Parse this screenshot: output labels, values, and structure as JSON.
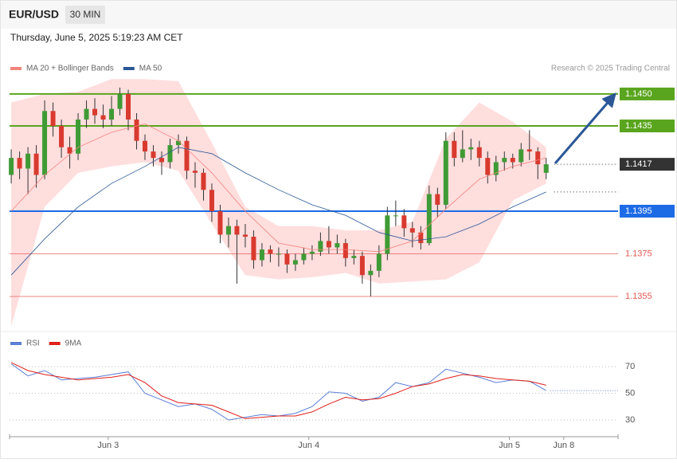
{
  "header": {
    "symbol": "EUR/USD",
    "interval": "30 MIN",
    "timestamp": "Thursday, June 5, 2025 5:19:23 AM CET",
    "credit": "Research © 2025 Trading Central"
  },
  "chart_data": [
    {
      "type": "candlestick",
      "legend": [
        {
          "label": "MA 20 + Bollinger Bands",
          "color": "#f4837d"
        },
        {
          "label": "MA 50",
          "color": "#2b5797"
        }
      ],
      "up_color": "#3f9b35",
      "down_color": "#d93a2f",
      "band_color": "#ffdede",
      "xlim": [
        -0.2,
        72.6
      ],
      "xticks": [
        {
          "value": 11.6,
          "label": "Jun 3"
        },
        {
          "value": 35.6,
          "label": "Jun 4"
        },
        {
          "value": 59.6,
          "label": "Jun 5"
        },
        {
          "value": 66.1,
          "label": "Jun 8"
        }
      ],
      "ylim": [
        1.13389,
        1.14567
      ],
      "levels": [
        {
          "value": 1.145,
          "label": "1.1450",
          "color": "#5aa51e",
          "line": "solid",
          "tag": true
        },
        {
          "value": 1.1435,
          "label": "1.1435",
          "color": "#5aa51e",
          "line": "solid",
          "tag": true
        },
        {
          "value": 1.1417,
          "label": "1.1417",
          "color": "#333333",
          "line": "dotted",
          "tag": true
        },
        {
          "value": 1.1395,
          "label": "1.1395",
          "color": "#1e6be6",
          "line": "solid",
          "tag": true
        },
        {
          "value": 1.1375,
          "label": "1.1375",
          "color": "#e35a52",
          "line": "solid",
          "tag": false
        },
        {
          "value": 1.1355,
          "label": "1.1355",
          "color": "#e35a52",
          "line": "solid",
          "tag": false
        }
      ],
      "candles": [
        [
          1.1412,
          1.1424,
          1.1408,
          1.142
        ],
        [
          1.142,
          1.1423,
          1.141,
          1.1415
        ],
        [
          1.1415,
          1.1425,
          1.1403,
          1.1422
        ],
        [
          1.1422,
          1.1426,
          1.1406,
          1.1412
        ],
        [
          1.1412,
          1.1447,
          1.141,
          1.1442
        ],
        [
          1.1442,
          1.1446,
          1.143,
          1.1435
        ],
        [
          1.1435,
          1.1438,
          1.142,
          1.1425
        ],
        [
          1.1425,
          1.143,
          1.1415,
          1.1422
        ],
        [
          1.1422,
          1.1441,
          1.1419,
          1.1438
        ],
        [
          1.1438,
          1.1447,
          1.1434,
          1.1443
        ],
        [
          1.1443,
          1.1448,
          1.1436,
          1.144
        ],
        [
          1.144,
          1.1445,
          1.1434,
          1.1438
        ],
        [
          1.1438,
          1.1449,
          1.1435,
          1.1443
        ],
        [
          1.1443,
          1.1453,
          1.144,
          1.145
        ],
        [
          1.145,
          1.1452,
          1.1433,
          1.1438
        ],
        [
          1.1438,
          1.1441,
          1.1424,
          1.1428
        ],
        [
          1.1428,
          1.1431,
          1.1419,
          1.1423
        ],
        [
          1.1423,
          1.1426,
          1.1416,
          1.142
        ],
        [
          1.142,
          1.1423,
          1.1412,
          1.1418
        ],
        [
          1.1418,
          1.1429,
          1.1415,
          1.1426
        ],
        [
          1.1426,
          1.1431,
          1.1422,
          1.1428
        ],
        [
          1.1428,
          1.143,
          1.141,
          1.1414
        ],
        [
          1.1414,
          1.1418,
          1.1406,
          1.1413
        ],
        [
          1.1413,
          1.1415,
          1.14,
          1.1405
        ],
        [
          1.1405,
          1.1408,
          1.139,
          1.1395
        ],
        [
          1.1395,
          1.1398,
          1.138,
          1.1384
        ],
        [
          1.1384,
          1.1392,
          1.1378,
          1.1388
        ],
        [
          1.1388,
          1.1391,
          1.1361,
          1.1384
        ],
        [
          1.1384,
          1.1389,
          1.1378,
          1.1383
        ],
        [
          1.1383,
          1.1386,
          1.1368,
          1.1372
        ],
        [
          1.1372,
          1.138,
          1.1369,
          1.1377
        ],
        [
          1.1377,
          1.1379,
          1.1371,
          1.1375
        ],
        [
          1.1375,
          1.1378,
          1.1369,
          1.1375
        ],
        [
          1.1375,
          1.1377,
          1.1366,
          1.137
        ],
        [
          1.137,
          1.1375,
          1.1367,
          1.1372
        ],
        [
          1.1372,
          1.1378,
          1.137,
          1.1375
        ],
        [
          1.1375,
          1.1379,
          1.1372,
          1.1376
        ],
        [
          1.1376,
          1.1385,
          1.1374,
          1.1381
        ],
        [
          1.1381,
          1.1388,
          1.1375,
          1.1378
        ],
        [
          1.1378,
          1.1384,
          1.1375,
          1.138
        ],
        [
          1.138,
          1.1382,
          1.1369,
          1.1373
        ],
        [
          1.1373,
          1.1377,
          1.137,
          1.1374
        ],
        [
          1.1374,
          1.1376,
          1.1361,
          1.1365
        ],
        [
          1.1365,
          1.137,
          1.1355,
          1.1367
        ],
        [
          1.1367,
          1.1379,
          1.1364,
          1.1375
        ],
        [
          1.1375,
          1.1397,
          1.1372,
          1.1393
        ],
        [
          1.1393,
          1.14,
          1.1388,
          1.1393
        ],
        [
          1.1393,
          1.1396,
          1.1383,
          1.1387
        ],
        [
          1.1387,
          1.139,
          1.1378,
          1.1385
        ],
        [
          1.1385,
          1.1388,
          1.1377,
          1.138
        ],
        [
          1.138,
          1.1407,
          1.1379,
          1.1403
        ],
        [
          1.1403,
          1.1406,
          1.1392,
          1.1398
        ],
        [
          1.1398,
          1.1432,
          1.1396,
          1.1428
        ],
        [
          1.1428,
          1.1432,
          1.1416,
          1.142
        ],
        [
          1.142,
          1.1433,
          1.1418,
          1.1424
        ],
        [
          1.1424,
          1.1429,
          1.1419,
          1.1425
        ],
        [
          1.1425,
          1.1428,
          1.1416,
          1.142
        ],
        [
          1.142,
          1.1423,
          1.1408,
          1.1412
        ],
        [
          1.1412,
          1.1421,
          1.1409,
          1.1418
        ],
        [
          1.1418,
          1.1423,
          1.1414,
          1.142
        ],
        [
          1.142,
          1.1422,
          1.1415,
          1.1418
        ],
        [
          1.1418,
          1.1427,
          1.1416,
          1.1424
        ],
        [
          1.1424,
          1.1433,
          1.1419,
          1.1423
        ],
        [
          1.1423,
          1.1425,
          1.141,
          1.1417
        ],
        [
          1.1413,
          1.142,
          1.141,
          1.1417
        ]
      ],
      "overlay_x": [
        0,
        4,
        8,
        12,
        16,
        20,
        24,
        28,
        32,
        36,
        40,
        44,
        48,
        52,
        56,
        60,
        64
      ],
      "ma20": [
        1.1395,
        1.1412,
        1.1425,
        1.1432,
        1.1436,
        1.1428,
        1.1413,
        1.1395,
        1.138,
        1.1377,
        1.1377,
        1.1376,
        1.1381,
        1.1396,
        1.141,
        1.1416,
        1.142
      ],
      "ma50": [
        1.1365,
        1.1382,
        1.1397,
        1.1408,
        1.1416,
        1.1425,
        1.1422,
        1.1413,
        1.1405,
        1.1398,
        1.1393,
        1.1385,
        1.1381,
        1.1383,
        1.1389,
        1.1397,
        1.1404
      ],
      "bb_upper": [
        1.1446,
        1.145,
        1.1451,
        1.1457,
        1.1457,
        1.1456,
        1.1427,
        1.1397,
        1.1388,
        1.1388,
        1.1386,
        1.1386,
        1.139,
        1.1429,
        1.1446,
        1.1437,
        1.1425
      ],
      "bb_lower": [
        1.1341,
        1.1397,
        1.1413,
        1.1416,
        1.1418,
        1.1414,
        1.1389,
        1.1365,
        1.1363,
        1.1364,
        1.1366,
        1.1361,
        1.1362,
        1.1363,
        1.1371,
        1.14,
        1.1408
      ]
    },
    {
      "type": "line",
      "x": [
        0,
        2,
        4,
        6,
        8,
        10,
        12,
        14,
        16,
        18,
        20,
        22,
        24,
        26,
        28,
        30,
        32,
        34,
        36,
        38,
        40,
        42,
        44,
        46,
        48,
        50,
        52,
        54,
        56,
        58,
        60,
        62,
        64
      ],
      "xlim": [
        -0.2,
        72.6
      ],
      "ylim": [
        19.25,
        81.9
      ],
      "yticks": [
        30,
        50,
        70
      ],
      "series": [
        {
          "name": "RSI",
          "color": "#5b7fd6",
          "values": [
            72,
            63,
            67,
            60,
            61,
            62,
            64,
            66,
            50,
            45,
            40,
            42,
            38,
            30,
            32,
            34,
            33,
            35,
            40,
            51,
            50,
            44,
            47,
            58,
            55,
            58,
            68,
            65,
            62,
            58,
            60,
            59,
            52
          ]
        },
        {
          "name": "9MA",
          "color": "#e0201b",
          "values": [
            73,
            67,
            64,
            62,
            60,
            61,
            62,
            64,
            58,
            48,
            43,
            42,
            41,
            36,
            31,
            32,
            33,
            33,
            36,
            42,
            47,
            45,
            46,
            50,
            55,
            57,
            61,
            64,
            63,
            61,
            60,
            59,
            56
          ]
        }
      ]
    }
  ]
}
